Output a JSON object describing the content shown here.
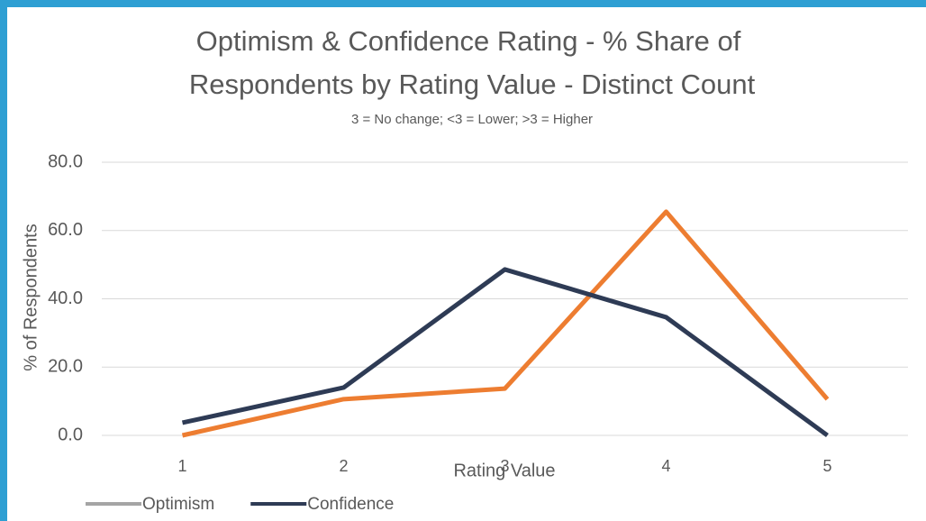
{
  "chart_data": {
    "type": "line",
    "title": [
      "Optimism & Confidence Rating - % Share of",
      "Respondents by Rating Value - Distinct Count"
    ],
    "subtitle": "3 = No change; <3 = Lower; >3 = Higher",
    "x_label": "Rating Value",
    "y_label": "% of Respondents",
    "categories": [
      "1",
      "2",
      "3",
      "4",
      "5"
    ],
    "series": [
      {
        "name": "Optimism",
        "color": "#ed7d31",
        "legend_color": "#a5a5a5",
        "values": [
          0,
          10.6,
          13.7,
          65.5,
          10.6
        ]
      },
      {
        "name": "Confidence",
        "color": "#2e3b55",
        "legend_color": "#2e3b55",
        "values": [
          3.7,
          14.0,
          48.6,
          34.6,
          0
        ]
      }
    ],
    "ylim": [
      0,
      80
    ],
    "yticks": [
      {
        "value": 0,
        "label": "0.0"
      },
      {
        "value": 20,
        "label": "20.0"
      },
      {
        "value": 40,
        "label": "40.0"
      },
      {
        "value": 60,
        "label": "60.0"
      },
      {
        "value": 80,
        "label": "80.0"
      }
    ],
    "grid": true,
    "legend": "bottom-left"
  }
}
